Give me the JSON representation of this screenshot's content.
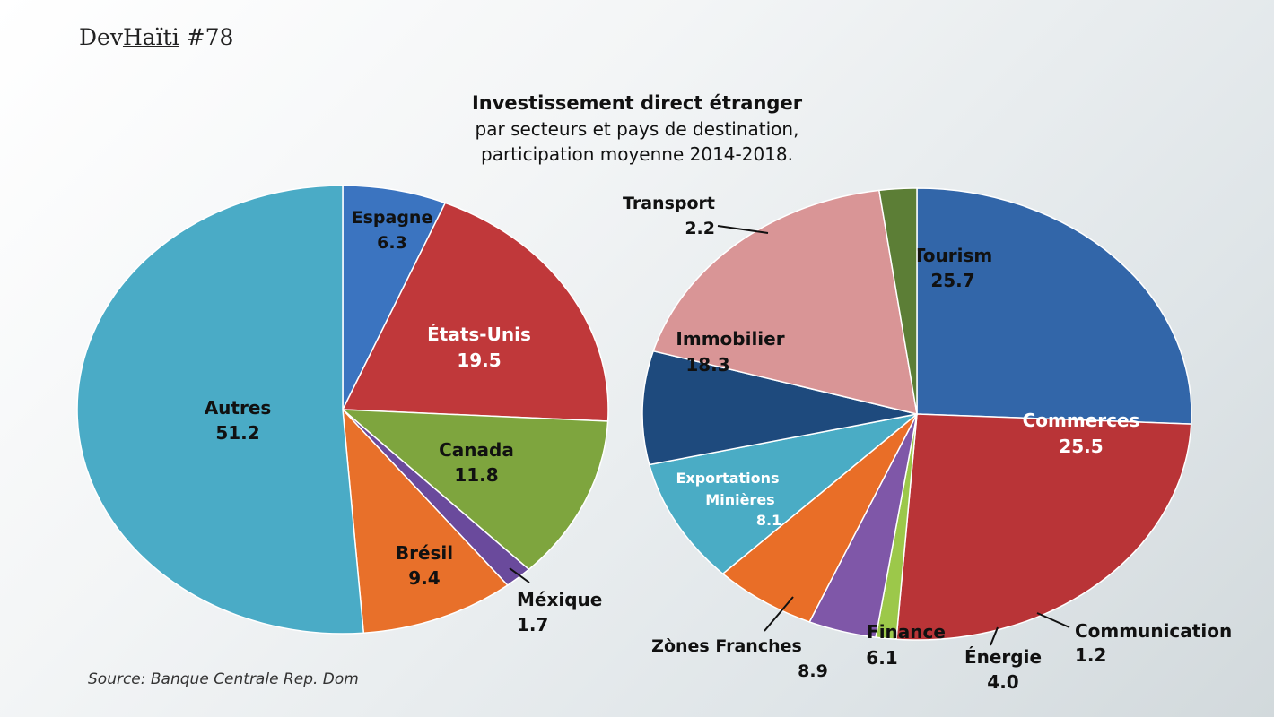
{
  "brand": {
    "name_dev": "Dev",
    "name_haiti": "Haïti",
    "issue": "#78"
  },
  "source": "Source: Banque Centrale Rep. Dom",
  "chart_data": [
    {
      "type": "pie",
      "title": "Investissement direct étranger",
      "subtitle": [
        "par secteurs et pays de destination,",
        "participation moyenne 2014-2018."
      ],
      "slices": [
        {
          "label": "Espagne",
          "value": 6.3,
          "display": "6.3",
          "color": "#3b74c0"
        },
        {
          "label": "États-Unis",
          "value": 19.5,
          "display": "19.5",
          "color": "#c0383a"
        },
        {
          "label": "Canada",
          "value": 11.8,
          "display": "11.8",
          "color": "#7ea53e"
        },
        {
          "label": "Méxique",
          "value": 1.7,
          "display": "1.7",
          "color": "#6a4a9c"
        },
        {
          "label": "Brésil",
          "value": 9.4,
          "display": "9.4",
          "color": "#e8702a"
        },
        {
          "label": "Autres",
          "value": 51.2,
          "display": "51.2",
          "color": "#4aabc6"
        }
      ]
    },
    {
      "type": "pie",
      "slices": [
        {
          "label": "Tourism",
          "value": 25.7,
          "display": "25.7",
          "color": "#3266a9"
        },
        {
          "label": "Commerces",
          "value": 25.5,
          "display": "25.5",
          "color": "#b93437"
        },
        {
          "label": "Communication",
          "value": 1.2,
          "display": "1.2",
          "color": "#9cc84a"
        },
        {
          "label": "Énergie",
          "value": 4.0,
          "display": "4.0",
          "color": "#7f57a8"
        },
        {
          "label": "Finance",
          "value": 6.1,
          "display": "6.1",
          "color": "#e96e27"
        },
        {
          "label": "Zònes Franches",
          "value": 8.9,
          "display": "8.9",
          "color": "#4aacc5"
        },
        {
          "label": "Exportations Minières",
          "label_lines": [
            "Exportations",
            "Minières"
          ],
          "value": 8.1,
          "display": "8.1",
          "color": "#1e4a7d"
        },
        {
          "label": "Immobilier",
          "value": 18.3,
          "display": "18.3",
          "color": "#d99596"
        },
        {
          "label": "Transport",
          "value": 2.2,
          "display": "2.2",
          "color": "#5c7e36"
        }
      ]
    }
  ]
}
